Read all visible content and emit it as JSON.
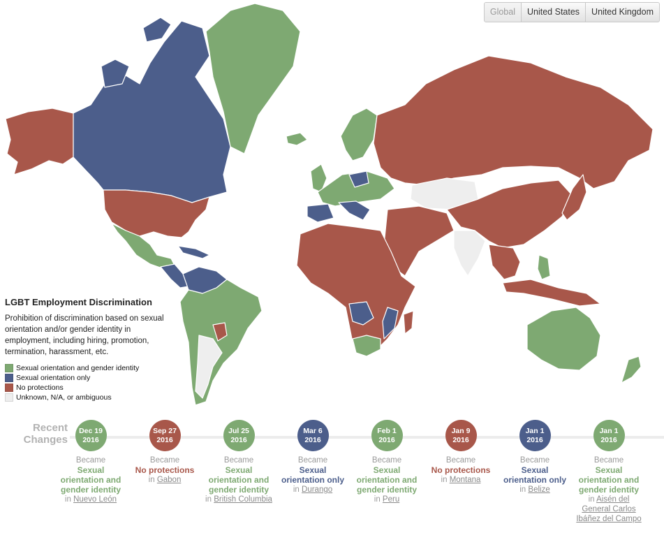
{
  "tabs": [
    {
      "label": "Global"
    },
    {
      "label": "United States"
    },
    {
      "label": "United Kingdom"
    }
  ],
  "legend": {
    "title": "LGBT Employment Discrimination",
    "description": "Prohibition of discrimination based on sexual orientation and/or gender identity in employment, including hiring, promotion, termination, harassment, etc.",
    "items": [
      {
        "label": "Sexual orientation and gender identity",
        "color": "#7ea972"
      },
      {
        "label": "Sexual orientation only",
        "color": "#4c5e8b"
      },
      {
        "label": "No protections",
        "color": "#a8574a"
      },
      {
        "label": "Unknown, N/A, or ambiguous",
        "color": "#eeeeee"
      }
    ]
  },
  "recent": {
    "title_line1": "Recent",
    "title_line2": "Changes",
    "changes": [
      {
        "month_day": "Dec 19",
        "year": "2016",
        "became": "Became",
        "status": "Sexual orientation and gender identity",
        "in": "in",
        "place": "Nuevo León",
        "color": "#7ea972"
      },
      {
        "month_day": "Sep 27",
        "year": "2016",
        "became": "Became",
        "status": "No protections",
        "in": "in",
        "place": "Gabon",
        "color": "#a8574a"
      },
      {
        "month_day": "Jul 25",
        "year": "2016",
        "became": "Became",
        "status": "Sexual orientation and gender identity",
        "in": "in",
        "place": "British Columbia",
        "color": "#7ea972"
      },
      {
        "month_day": "Mar 6",
        "year": "2016",
        "became": "Became",
        "status": "Sexual orientation only",
        "in": "in",
        "place": "Durango",
        "color": "#4c5e8b"
      },
      {
        "month_day": "Feb 1",
        "year": "2016",
        "became": "Became",
        "status": "Sexual orientation and gender identity",
        "in": "in",
        "place": "Peru",
        "color": "#7ea972"
      },
      {
        "month_day": "Jan 9",
        "year": "2016",
        "became": "Became",
        "status": "No protections",
        "in": "in",
        "place": "Montana",
        "color": "#a8574a"
      },
      {
        "month_day": "Jan 1",
        "year": "2016",
        "became": "Became",
        "status": "Sexual orientation only",
        "in": "in",
        "place": "Belize",
        "color": "#4c5e8b"
      },
      {
        "month_day": "Jan 1",
        "year": "2016",
        "became": "Became",
        "status": "Sexual orientation and gender identity",
        "in": "in",
        "place": "Aisén del General Carlos Ibáñez del Campo",
        "color": "#7ea972"
      }
    ]
  }
}
